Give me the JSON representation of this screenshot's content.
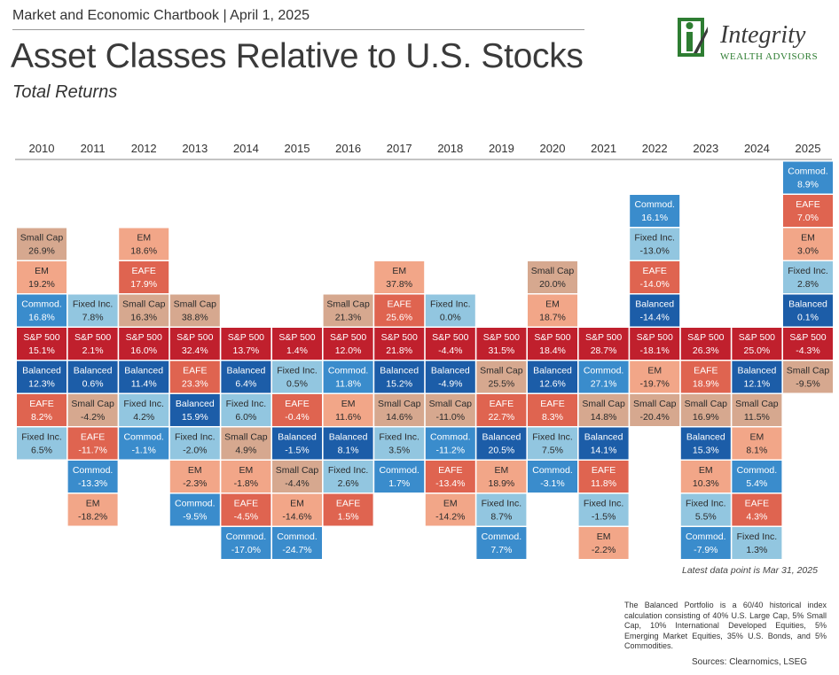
{
  "header": {
    "top_line": "Market and Economic Chartbook | April 1, 2025",
    "title": "Asset Classes Relative to U.S. Stocks",
    "subtitle": "Total Returns"
  },
  "logo": {
    "name": "Integrity",
    "subtitle": "WEALTH ADVISORS"
  },
  "colors": {
    "S&P 500": "#c0202d",
    "Balanced": "#1c5da8",
    "Fixed Inc.": "#92c6e0",
    "Commod.": "#3a8ccc",
    "EAFE": "#df6450",
    "EM": "#f2a688",
    "Small Cap": "#d6a88f",
    "logo_green": "#2e7d32"
  },
  "chart_data": {
    "type": "table",
    "description_kind": "ranked returns quilt, stacked around S&P 500 baseline",
    "years": [
      "2010",
      "2011",
      "2012",
      "2013",
      "2014",
      "2015",
      "2016",
      "2017",
      "2018",
      "2019",
      "2020",
      "2021",
      "2022",
      "2023",
      "2024",
      "2025"
    ],
    "columns": [
      {
        "above": [
          {
            "asset": "Small Cap",
            "value": "26.9%"
          },
          {
            "asset": "EM",
            "value": "19.2%"
          },
          {
            "asset": "Commod.",
            "value": "16.8%"
          }
        ],
        "sp500": "15.1%",
        "below": [
          {
            "asset": "Balanced",
            "value": "12.3%"
          },
          {
            "asset": "EAFE",
            "value": "8.2%"
          },
          {
            "asset": "Fixed Inc.",
            "value": "6.5%"
          }
        ]
      },
      {
        "above": [
          {
            "asset": "Fixed Inc.",
            "value": "7.8%"
          }
        ],
        "sp500": "2.1%",
        "below": [
          {
            "asset": "Balanced",
            "value": "0.6%"
          },
          {
            "asset": "Small Cap",
            "value": "-4.2%"
          },
          {
            "asset": "EAFE",
            "value": "-11.7%"
          },
          {
            "asset": "Commod.",
            "value": "-13.3%"
          },
          {
            "asset": "EM",
            "value": "-18.2%"
          }
        ]
      },
      {
        "above": [
          {
            "asset": "EM",
            "value": "18.6%"
          },
          {
            "asset": "EAFE",
            "value": "17.9%"
          },
          {
            "asset": "Small Cap",
            "value": "16.3%"
          }
        ],
        "sp500": "16.0%",
        "below": [
          {
            "asset": "Balanced",
            "value": "11.4%"
          },
          {
            "asset": "Fixed Inc.",
            "value": "4.2%"
          },
          {
            "asset": "Commod.",
            "value": "-1.1%"
          }
        ]
      },
      {
        "above": [
          {
            "asset": "Small Cap",
            "value": "38.8%"
          }
        ],
        "sp500": "32.4%",
        "below": [
          {
            "asset": "EAFE",
            "value": "23.3%"
          },
          {
            "asset": "Balanced",
            "value": "15.9%"
          },
          {
            "asset": "Fixed Inc.",
            "value": "-2.0%"
          },
          {
            "asset": "EM",
            "value": "-2.3%"
          },
          {
            "asset": "Commod.",
            "value": "-9.5%"
          }
        ]
      },
      {
        "above": [],
        "sp500": "13.7%",
        "below": [
          {
            "asset": "Balanced",
            "value": "6.4%"
          },
          {
            "asset": "Fixed Inc.",
            "value": "6.0%"
          },
          {
            "asset": "Small Cap",
            "value": "4.9%"
          },
          {
            "asset": "EM",
            "value": "-1.8%"
          },
          {
            "asset": "EAFE",
            "value": "-4.5%"
          },
          {
            "asset": "Commod.",
            "value": "-17.0%"
          }
        ]
      },
      {
        "above": [],
        "sp500": "1.4%",
        "below": [
          {
            "asset": "Fixed Inc.",
            "value": "0.5%"
          },
          {
            "asset": "EAFE",
            "value": "-0.4%"
          },
          {
            "asset": "Balanced",
            "value": "-1.5%"
          },
          {
            "asset": "Small Cap",
            "value": "-4.4%"
          },
          {
            "asset": "EM",
            "value": "-14.6%"
          },
          {
            "asset": "Commod.",
            "value": "-24.7%"
          }
        ]
      },
      {
        "above": [
          {
            "asset": "Small Cap",
            "value": "21.3%"
          }
        ],
        "sp500": "12.0%",
        "below": [
          {
            "asset": "Commod.",
            "value": "11.8%"
          },
          {
            "asset": "EM",
            "value": "11.6%"
          },
          {
            "asset": "Balanced",
            "value": "8.1%"
          },
          {
            "asset": "Fixed Inc.",
            "value": "2.6%"
          },
          {
            "asset": "EAFE",
            "value": "1.5%"
          }
        ]
      },
      {
        "above": [
          {
            "asset": "EM",
            "value": "37.8%"
          },
          {
            "asset": "EAFE",
            "value": "25.6%"
          }
        ],
        "sp500": "21.8%",
        "below": [
          {
            "asset": "Balanced",
            "value": "15.2%"
          },
          {
            "asset": "Small Cap",
            "value": "14.6%"
          },
          {
            "asset": "Fixed Inc.",
            "value": "3.5%"
          },
          {
            "asset": "Commod.",
            "value": "1.7%"
          }
        ]
      },
      {
        "above": [
          {
            "asset": "Fixed Inc.",
            "value": "0.0%"
          }
        ],
        "sp500": "-4.4%",
        "below": [
          {
            "asset": "Balanced",
            "value": "-4.9%"
          },
          {
            "asset": "Small Cap",
            "value": "-11.0%"
          },
          {
            "asset": "Commod.",
            "value": "-11.2%"
          },
          {
            "asset": "EAFE",
            "value": "-13.4%"
          },
          {
            "asset": "EM",
            "value": "-14.2%"
          }
        ]
      },
      {
        "above": [],
        "sp500": "31.5%",
        "below": [
          {
            "asset": "Small Cap",
            "value": "25.5%"
          },
          {
            "asset": "EAFE",
            "value": "22.7%"
          },
          {
            "asset": "Balanced",
            "value": "20.5%"
          },
          {
            "asset": "EM",
            "value": "18.9%"
          },
          {
            "asset": "Fixed Inc.",
            "value": "8.7%"
          },
          {
            "asset": "Commod.",
            "value": "7.7%"
          }
        ]
      },
      {
        "above": [
          {
            "asset": "Small Cap",
            "value": "20.0%"
          },
          {
            "asset": "EM",
            "value": "18.7%"
          }
        ],
        "sp500": "18.4%",
        "below": [
          {
            "asset": "Balanced",
            "value": "12.6%"
          },
          {
            "asset": "EAFE",
            "value": "8.3%"
          },
          {
            "asset": "Fixed Inc.",
            "value": "7.5%"
          },
          {
            "asset": "Commod.",
            "value": "-3.1%"
          }
        ]
      },
      {
        "above": [],
        "sp500": "28.7%",
        "below": [
          {
            "asset": "Commod.",
            "value": "27.1%"
          },
          {
            "asset": "Small Cap",
            "value": "14.8%"
          },
          {
            "asset": "Balanced",
            "value": "14.1%"
          },
          {
            "asset": "EAFE",
            "value": "11.8%"
          },
          {
            "asset": "Fixed Inc.",
            "value": "-1.5%"
          },
          {
            "asset": "EM",
            "value": "-2.2%"
          }
        ]
      },
      {
        "above": [
          {
            "asset": "Commod.",
            "value": "16.1%"
          },
          {
            "asset": "Fixed Inc.",
            "value": "-13.0%"
          },
          {
            "asset": "EAFE",
            "value": "-14.0%"
          },
          {
            "asset": "Balanced",
            "value": "-14.4%"
          }
        ],
        "sp500": "-18.1%",
        "below": [
          {
            "asset": "EM",
            "value": "-19.7%"
          },
          {
            "asset": "Small Cap",
            "value": "-20.4%"
          }
        ]
      },
      {
        "above": [],
        "sp500": "26.3%",
        "below": [
          {
            "asset": "EAFE",
            "value": "18.9%"
          },
          {
            "asset": "Small Cap",
            "value": "16.9%"
          },
          {
            "asset": "Balanced",
            "value": "15.3%"
          },
          {
            "asset": "EM",
            "value": "10.3%"
          },
          {
            "asset": "Fixed Inc.",
            "value": "5.5%"
          },
          {
            "asset": "Commod.",
            "value": "-7.9%"
          }
        ]
      },
      {
        "above": [],
        "sp500": "25.0%",
        "below": [
          {
            "asset": "Balanced",
            "value": "12.1%"
          },
          {
            "asset": "Small Cap",
            "value": "11.5%"
          },
          {
            "asset": "EM",
            "value": "8.1%"
          },
          {
            "asset": "Commod.",
            "value": "5.4%"
          },
          {
            "asset": "EAFE",
            "value": "4.3%"
          },
          {
            "asset": "Fixed Inc.",
            "value": "1.3%"
          }
        ]
      },
      {
        "above": [
          {
            "asset": "Commod.",
            "value": "8.9%"
          },
          {
            "asset": "EAFE",
            "value": "7.0%"
          },
          {
            "asset": "EM",
            "value": "3.0%"
          },
          {
            "asset": "Fixed Inc.",
            "value": "2.8%"
          },
          {
            "asset": "Balanced",
            "value": "0.1%"
          }
        ],
        "sp500": "-4.3%",
        "below": [
          {
            "asset": "Small Cap",
            "value": "-9.5%"
          }
        ]
      }
    ]
  },
  "latest_note": "Latest data point is Mar 31, 2025",
  "footnote": "The Balanced Portfolio is a 60/40 historical index calculation consisting of 40% U.S. Large Cap, 5% Small Cap, 10% International Developed Equities, 5% Emerging Market Equities, 35% U.S. Bonds, and 5% Commodities.",
  "sources": "Sources: Clearnomics, LSEG"
}
